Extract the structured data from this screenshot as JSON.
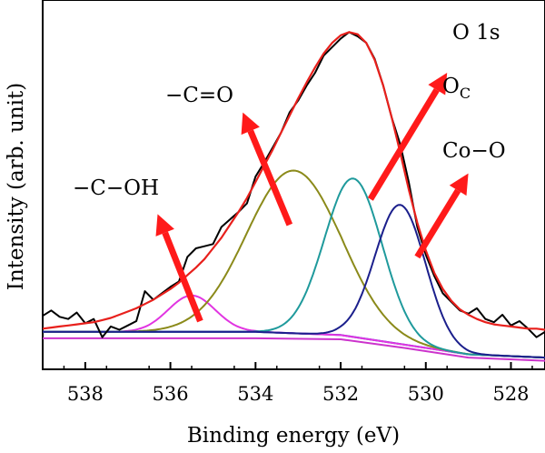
{
  "chart_data": {
    "type": "line",
    "title": "",
    "xlabel": "Binding energy (eV)",
    "ylabel": "Intensity (arb. unit)",
    "xlim": [
      539,
      527.2
    ],
    "ylim": [
      -0.35,
      3.1
    ],
    "x_reversed": true,
    "x_ticks": [
      538,
      536,
      534,
      532,
      530,
      528
    ],
    "y_ticks_shown": false,
    "grid": false,
    "legend": "none",
    "colors": {
      "raw": "#000000",
      "fit": "#e8201c",
      "c_oh": "#e135e1",
      "c_eq_o": "#8b8a1a",
      "o_c": "#1f9a9c",
      "co_o": "#1b1f8c",
      "bg_blue": "#2233cc",
      "bg_magenta": "#cc33cc",
      "arrow": "#ff1a1a"
    },
    "series": [
      {
        "key": "raw",
        "x": [
          539.0,
          538.8,
          538.6,
          538.4,
          538.2,
          538.0,
          537.8,
          537.6,
          537.4,
          537.2,
          537.0,
          536.8,
          536.6,
          536.4,
          536.2,
          536.0,
          535.8,
          535.6,
          535.4,
          535.2,
          535.0,
          534.8,
          534.6,
          534.4,
          534.2,
          534.0,
          533.8,
          533.6,
          533.4,
          533.2,
          533.0,
          532.8,
          532.6,
          532.4,
          532.2,
          532.0,
          531.8,
          531.6,
          531.4,
          531.2,
          531.0,
          530.8,
          530.6,
          530.4,
          530.2,
          530.0,
          529.8,
          529.6,
          529.4,
          529.2,
          529.0,
          528.8,
          528.6,
          528.4,
          528.2,
          528.0,
          527.8,
          527.6,
          527.4,
          527.2
        ],
        "y": [
          0.15,
          0.2,
          0.14,
          0.12,
          0.18,
          0.08,
          0.12,
          -0.05,
          0.05,
          0.02,
          0.06,
          0.1,
          0.38,
          0.3,
          0.36,
          0.42,
          0.47,
          0.7,
          0.78,
          0.8,
          0.82,
          0.98,
          1.05,
          1.12,
          1.2,
          1.45,
          1.58,
          1.72,
          1.86,
          2.05,
          2.16,
          2.3,
          2.42,
          2.58,
          2.66,
          2.74,
          2.8,
          2.76,
          2.7,
          2.55,
          2.3,
          2.0,
          1.75,
          1.4,
          0.98,
          0.72,
          0.52,
          0.36,
          0.28,
          0.2,
          0.17,
          0.22,
          0.12,
          0.09,
          0.16,
          0.06,
          0.1,
          0.03,
          -0.05,
          0.0
        ]
      },
      {
        "key": "fit",
        "x": [
          539.0,
          538.8,
          538.6,
          538.4,
          538.2,
          538.0,
          537.8,
          537.6,
          537.4,
          537.2,
          537.0,
          536.8,
          536.6,
          536.4,
          536.2,
          536.0,
          535.8,
          535.6,
          535.4,
          535.2,
          535.0,
          534.8,
          534.6,
          534.4,
          534.2,
          534.0,
          533.8,
          533.6,
          533.4,
          533.2,
          533.0,
          532.8,
          532.6,
          532.4,
          532.2,
          532.0,
          531.8,
          531.6,
          531.4,
          531.2,
          531.0,
          530.8,
          530.6,
          530.4,
          530.2,
          530.0,
          529.8,
          529.6,
          529.4,
          529.2,
          529.0,
          528.8,
          528.6,
          528.4,
          528.2,
          528.0,
          527.8,
          527.6,
          527.4,
          527.2
        ],
        "y": [
          0.03,
          0.04,
          0.05,
          0.06,
          0.07,
          0.08,
          0.09,
          0.11,
          0.13,
          0.16,
          0.19,
          0.22,
          0.26,
          0.3,
          0.35,
          0.4,
          0.46,
          0.53,
          0.6,
          0.68,
          0.78,
          0.88,
          1.0,
          1.12,
          1.25,
          1.4,
          1.55,
          1.7,
          1.86,
          2.02,
          2.18,
          2.33,
          2.47,
          2.6,
          2.7,
          2.77,
          2.8,
          2.78,
          2.7,
          2.54,
          2.3,
          2.0,
          1.67,
          1.33,
          1.02,
          0.76,
          0.55,
          0.4,
          0.29,
          0.21,
          0.16,
          0.12,
          0.09,
          0.07,
          0.06,
          0.05,
          0.04,
          0.03,
          0.03,
          0.02
        ]
      },
      {
        "key": "c_oh",
        "center": 535.5,
        "fwhm": 1.3,
        "height": 0.34
      },
      {
        "key": "c_eq_o",
        "center": 533.1,
        "fwhm": 2.6,
        "height": 1.52
      },
      {
        "key": "o_c",
        "center": 531.7,
        "fwhm": 1.6,
        "height": 1.48
      },
      {
        "key": "co_o",
        "center": 530.6,
        "fwhm": 1.4,
        "height": 1.3
      },
      {
        "key": "bg_blue",
        "x": [
          539.0,
          534.0,
          532.0,
          530.5,
          529.0,
          527.2
        ],
        "y": [
          0.0,
          0.0,
          -0.03,
          -0.12,
          -0.21,
          -0.24
        ]
      },
      {
        "key": "bg_magenta",
        "x": [
          539.0,
          534.0,
          532.0,
          530.5,
          529.0,
          527.2
        ],
        "y": [
          -0.06,
          -0.06,
          -0.07,
          -0.15,
          -0.24,
          -0.27
        ]
      }
    ],
    "annotations": {
      "o1s": "O 1s",
      "c_oh": "−C−OH",
      "c_eq_o": "−C=O",
      "o_c_main": "O",
      "o_c_sub": "C",
      "co_o": "Co−O"
    },
    "arrows": [
      {
        "from": [
          535.3,
          0.1
        ],
        "to": [
          536.3,
          1.1
        ]
      },
      {
        "from": [
          533.2,
          1.0
        ],
        "to": [
          534.3,
          2.05
        ]
      },
      {
        "from": [
          531.3,
          1.24
        ],
        "to": [
          529.5,
          2.42
        ]
      },
      {
        "from": [
          530.2,
          0.7
        ],
        "to": [
          529.0,
          1.48
        ]
      }
    ]
  }
}
